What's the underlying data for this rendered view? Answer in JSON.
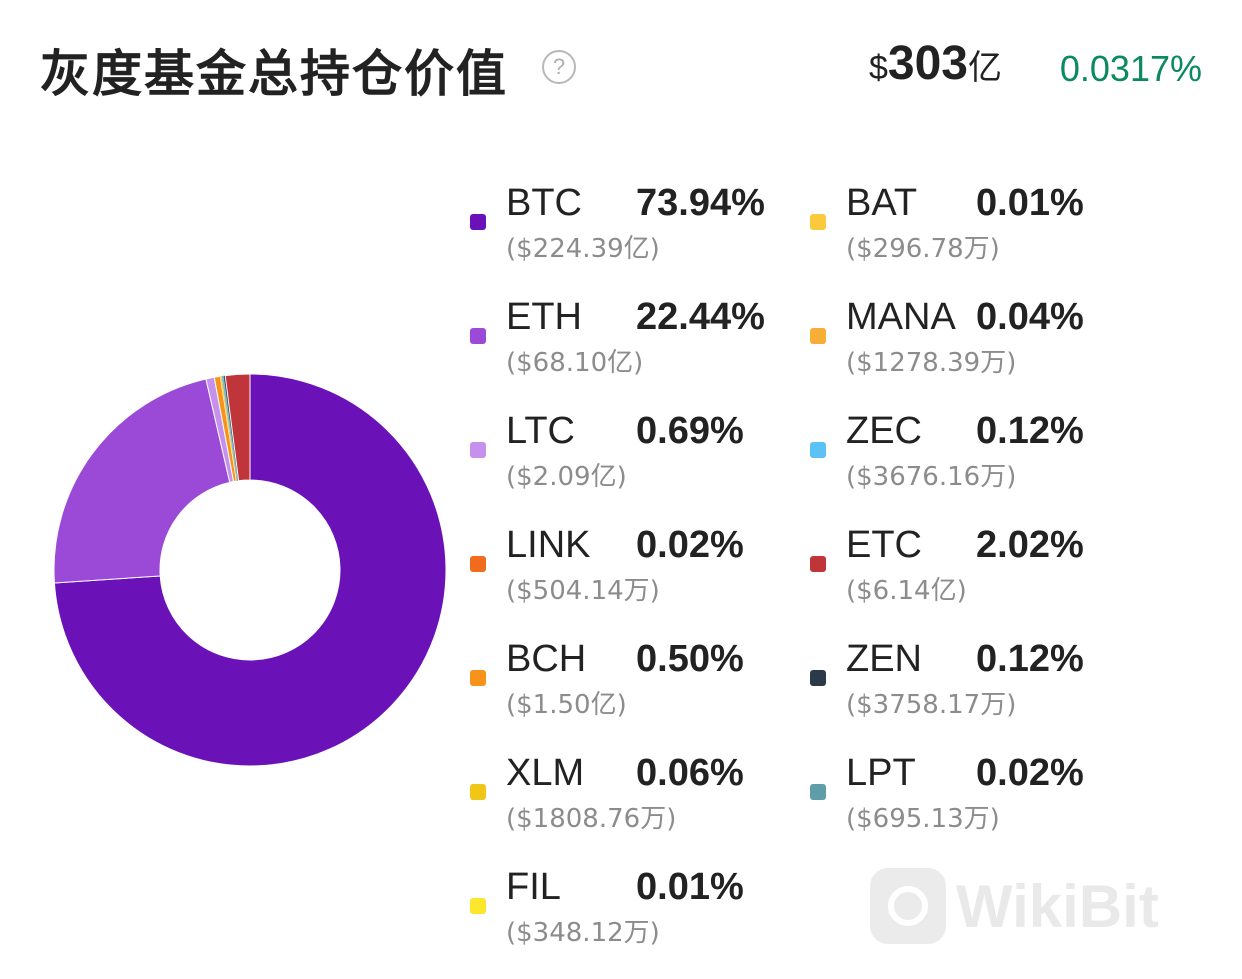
{
  "header": {
    "title": "灰度基金总持仓价值",
    "help_symbol": "?",
    "total_currency": "$",
    "total_value": "303",
    "total_unit": "亿",
    "change": "0.0317%"
  },
  "colors": {
    "change_positive": "#0a8a5e"
  },
  "watermark": {
    "text": "WikiBit"
  },
  "chart_data": {
    "type": "pie",
    "donut": true,
    "title": "灰度基金总持仓价值",
    "slices": [
      {
        "name": "BTC",
        "percent": 73.94,
        "percent_label": "73.94%",
        "amount": "($224.39亿)",
        "color": "#6a12b8"
      },
      {
        "name": "ETH",
        "percent": 22.44,
        "percent_label": "22.44%",
        "amount": "($68.10亿)",
        "color": "#9b4ad8"
      },
      {
        "name": "LTC",
        "percent": 0.69,
        "percent_label": "0.69%",
        "amount": "($2.09亿)",
        "color": "#c690ef"
      },
      {
        "name": "LINK",
        "percent": 0.02,
        "percent_label": "0.02%",
        "amount": "($504.14万)",
        "color": "#f26a1b"
      },
      {
        "name": "BCH",
        "percent": 0.5,
        "percent_label": "0.50%",
        "amount": "($1.50亿)",
        "color": "#f7931a"
      },
      {
        "name": "XLM",
        "percent": 0.06,
        "percent_label": "0.06%",
        "amount": "($1808.76万)",
        "color": "#f2c617"
      },
      {
        "name": "FIL",
        "percent": 0.01,
        "percent_label": "0.01%",
        "amount": "($348.12万)",
        "color": "#fde62e"
      },
      {
        "name": "BAT",
        "percent": 0.01,
        "percent_label": "0.01%",
        "amount": "($296.78万)",
        "color": "#fbc93d"
      },
      {
        "name": "MANA",
        "percent": 0.04,
        "percent_label": "0.04%",
        "amount": "($1278.39万)",
        "color": "#f6ae36"
      },
      {
        "name": "ZEC",
        "percent": 0.12,
        "percent_label": "0.12%",
        "amount": "($3676.16万)",
        "color": "#5cc1f5"
      },
      {
        "name": "ETC",
        "percent": 2.02,
        "percent_label": "2.02%",
        "amount": "($6.14亿)",
        "color": "#c0353a"
      },
      {
        "name": "ZEN",
        "percent": 0.12,
        "percent_label": "0.12%",
        "amount": "($3758.17万)",
        "color": "#2b3a48"
      },
      {
        "name": "LPT",
        "percent": 0.02,
        "percent_label": "0.02%",
        "amount": "($695.13万)",
        "color": "#5f9ea8"
      }
    ],
    "pie_order": [
      "BTC",
      "ETH",
      "LTC",
      "BCH",
      "XLM",
      "FIL",
      "BAT",
      "MANA",
      "ZEC",
      "LINK",
      "LPT",
      "ZEN",
      "ETC"
    ],
    "legend_placement": "right",
    "legend_columns": [
      [
        "BTC",
        "ETH",
        "LTC",
        "LINK",
        "BCH",
        "XLM",
        "FIL"
      ],
      [
        "BAT",
        "MANA",
        "ZEC",
        "ETC",
        "ZEN",
        "LPT"
      ]
    ]
  }
}
